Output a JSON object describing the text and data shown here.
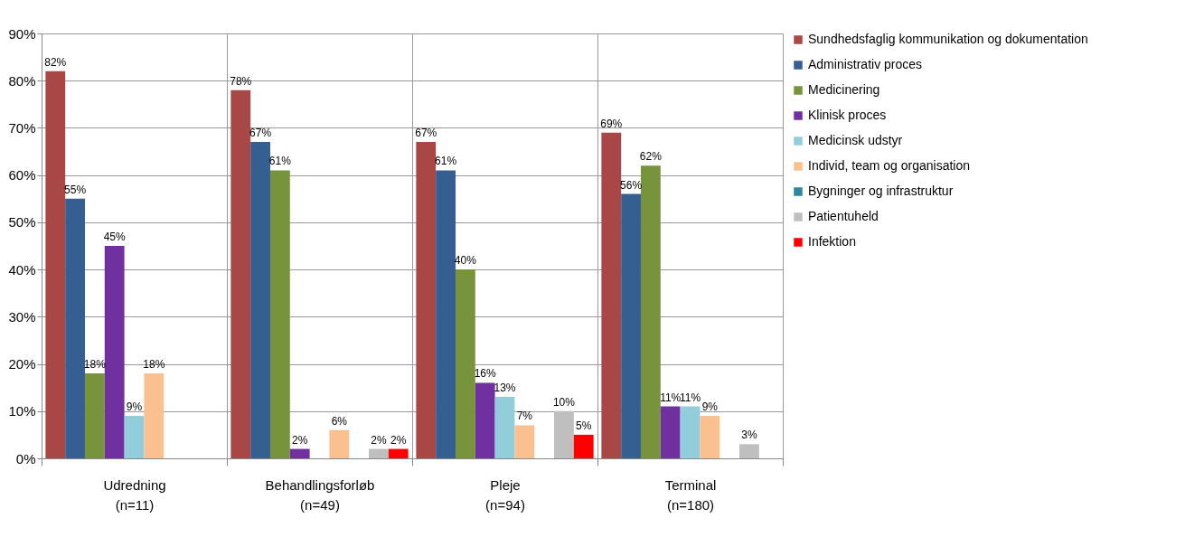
{
  "chart_data": {
    "type": "bar",
    "categories": [
      "Udredning\n(n=11)",
      "Behandlingsforløb\n(n=49)",
      "Pleje\n(n=94)",
      "Terminal\n(n=180)"
    ],
    "series": [
      {
        "name": "Sundhedsfaglig kommunikation og dokumentation",
        "color": "#a94747",
        "values": [
          82,
          78,
          67,
          69
        ],
        "value_labels": [
          "82%",
          "78%",
          "67%",
          "69%"
        ]
      },
      {
        "name": "Administrativ proces",
        "color": "#365f91",
        "values": [
          55,
          67,
          61,
          56
        ],
        "value_labels": [
          "55%",
          "67%",
          "61%",
          "56%"
        ]
      },
      {
        "name": "Medicinering",
        "color": "#77933c",
        "values": [
          18,
          61,
          40,
          62
        ],
        "value_labels": [
          "18%",
          "61%",
          "40%",
          "62%"
        ]
      },
      {
        "name": "Klinisk proces",
        "color": "#7030a0",
        "values": [
          45,
          2,
          16,
          11
        ],
        "value_labels": [
          "45%",
          "2%",
          "16%",
          "11%"
        ]
      },
      {
        "name": "Medicinsk udstyr",
        "color": "#92cddc",
        "values": [
          9,
          null,
          13,
          11
        ],
        "value_labels": [
          "9%",
          null,
          "13%",
          "11%"
        ]
      },
      {
        "name": "Individ, team og organisation",
        "color": "#fac090",
        "values": [
          18,
          6,
          7,
          9
        ],
        "value_labels": [
          "18%",
          "6%",
          "7%",
          "9%"
        ]
      },
      {
        "name": "Bygninger og infrastruktur",
        "color": "#31859c",
        "values": [
          null,
          null,
          null,
          null
        ],
        "value_labels": [
          null,
          null,
          null,
          null
        ]
      },
      {
        "name": "Patientuheld",
        "color": "#bfbfbf",
        "values": [
          null,
          2,
          10,
          3
        ],
        "value_labels": [
          null,
          "2%",
          "10%",
          "3%"
        ]
      },
      {
        "name": "Infektion",
        "color": "#ff0000",
        "values": [
          null,
          2,
          5,
          null
        ],
        "value_labels": [
          null,
          "2%",
          "5%",
          null
        ]
      }
    ],
    "ylim": [
      0,
      90
    ],
    "yticks": [
      {
        "value": 0,
        "label": "0%"
      },
      {
        "value": 10,
        "label": "10%"
      },
      {
        "value": 20,
        "label": "20%"
      },
      {
        "value": 30,
        "label": "30%"
      },
      {
        "value": 40,
        "label": "40%"
      },
      {
        "value": 50,
        "label": "50%"
      },
      {
        "value": 60,
        "label": "60%"
      },
      {
        "value": 70,
        "label": "70%"
      },
      {
        "value": 80,
        "label": "80%"
      },
      {
        "value": 90,
        "label": "90%"
      }
    ],
    "grid": true,
    "legend": "right"
  }
}
